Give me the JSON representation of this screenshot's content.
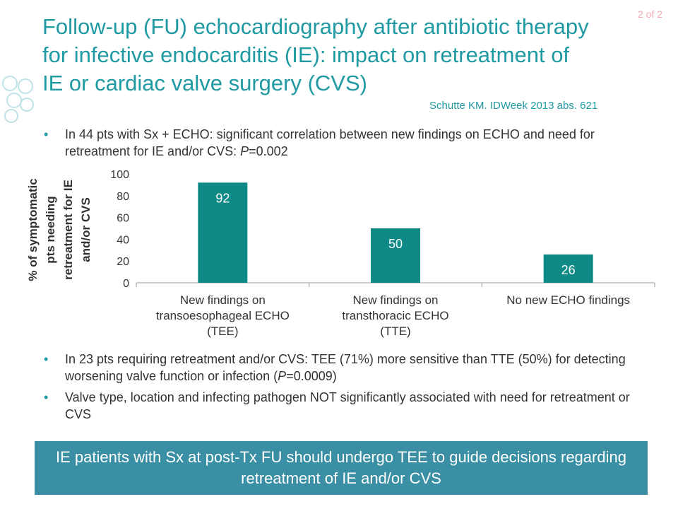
{
  "page_number": "2 of 2",
  "title": "Follow-up (FU) echocardiography after antibiotic therapy for infective endocarditis (IE): impact on retreatment of IE or cardiac valve surgery (CVS)",
  "citation": "Schutte KM. IDWeek 2013 abs. 621",
  "bullets_top": [
    {
      "pre": "In 44 pts with Sx + ECHO: significant correlation between new findings on ECHO and need for retreatment for IE and/or CVS: ",
      "italic": "P",
      "post": "=0.002"
    }
  ],
  "bullets_bottom": [
    {
      "pre": "In 23 pts requiring retreatment and/or CVS: TEE (71%) more sensitive than TTE (50%) for detecting worsening valve function or infection (",
      "italic": "P",
      "post": "=0.0009)"
    },
    {
      "pre": "Valve type, location and infecting pathogen NOT significantly associated with need for retreatment or CVS",
      "italic": "",
      "post": ""
    }
  ],
  "conclusion": "IE patients with Sx at post-Tx FU should undergo TEE to guide decisions regarding retreatment of IE and/or CVS",
  "colors": {
    "accent": "#1f9aa3",
    "bar": "#0f8a86",
    "conclusion_bg": "#3a8fa4",
    "page_number": "#f2a7ad"
  },
  "chart_data": {
    "type": "bar",
    "categories": [
      [
        "New findings on",
        "transoesophageal ECHO",
        "(TEE)"
      ],
      [
        "New findings on",
        "transthoracic ECHO",
        "(TTE)"
      ],
      [
        "No new ECHO findings"
      ]
    ],
    "values": [
      92,
      50,
      26
    ],
    "data_labels": [
      "92",
      "50",
      "26"
    ],
    "ylabel": [
      "% of symptomatic",
      "pts needing",
      "retreatment for IE",
      "and/or CVS"
    ],
    "xlabel": "",
    "ylim": [
      0,
      100
    ],
    "yticks": [
      0,
      20,
      40,
      60,
      80,
      100
    ],
    "grid": false,
    "legend": "none"
  }
}
